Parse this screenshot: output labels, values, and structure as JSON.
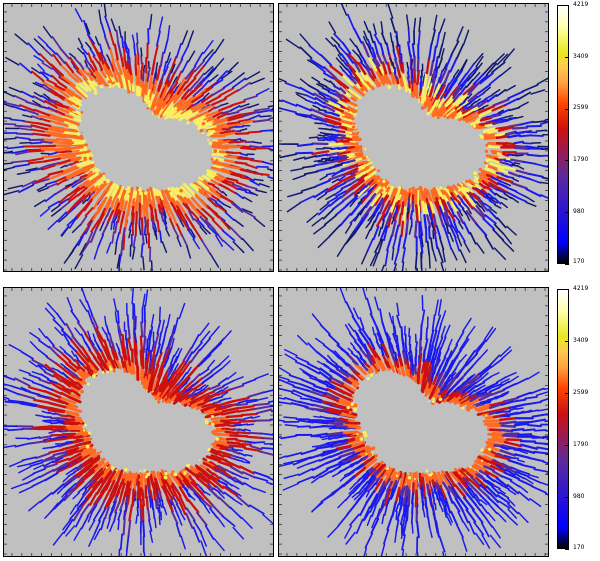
{
  "colorbars": [
    {
      "ticks": [
        "4219",
        "3409",
        "2599",
        "1790",
        "980",
        "170"
      ]
    },
    {
      "ticks": [
        "4219",
        "3409",
        "2599",
        "1790",
        "980",
        "170"
      ]
    }
  ],
  "panels": [
    {
      "palette": "warm"
    },
    {
      "palette": "cool"
    },
    {
      "palette": "red"
    },
    {
      "palette": "blue"
    }
  ],
  "colors": {
    "background": "#c0c0c0",
    "navy": "#101870",
    "blue": "#1a1aee",
    "purple": "#5a2aa0",
    "red": "#cc1010",
    "orange": "#ff6a20",
    "yellow": "#f8f060"
  }
}
